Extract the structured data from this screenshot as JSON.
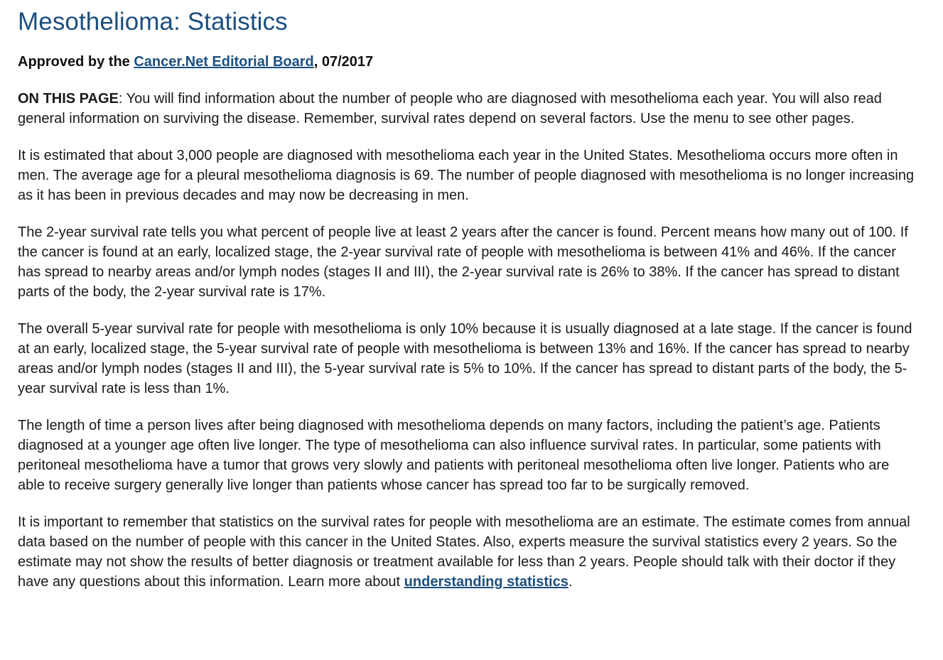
{
  "title": "Mesothelioma: Statistics",
  "approval": {
    "prefix": "Approved by the ",
    "board_link": "Cancer.Net Editorial Board",
    "suffix": ", 07/2017"
  },
  "on_this_page": {
    "label": "ON THIS PAGE",
    "text": ": You will find information about the number of people who are diagnosed with mesothelioma each year. You will also read general information on surviving the disease. Remember, survival rates depend on several factors. Use the menu to see other pages."
  },
  "paragraphs": [
    "It is estimated that about 3,000 people are diagnosed with mesothelioma each year in the United States. Mesothelioma occurs more often in men. The average age for a pleural mesothelioma diagnosis is 69. The number of people diagnosed with mesothelioma is no longer increasing as it has been in previous decades and may now be decreasing in men.",
    "The 2-year survival rate tells you what percent of people live at least 2 years after the cancer is found. Percent means how many out of 100. If the cancer is found at an early, localized stage, the 2-year survival rate of people with mesothelioma is between 41% and 46%. If the cancer has spread to nearby areas and/or lymph nodes (stages II and III), the 2-year survival rate is 26% to 38%. If the cancer has spread to distant parts of the body, the 2-year survival rate is 17%.",
    "The overall 5-year survival rate for people with mesothelioma is only 10% because it is usually diagnosed at a late stage. If the cancer is found at an early, localized stage, the 5-year survival rate of people with mesothelioma is between 13% and 16%. If the cancer has spread to nearby areas and/or lymph nodes (stages II and III), the 5-year survival rate is 5% to 10%. If the cancer has spread to distant parts of the body, the 5-year survival rate is less than 1%.",
    "The length of time a person lives after being diagnosed with mesothelioma depends on many factors, including the patient’s age. Patients diagnosed at a younger age often live longer. The type of mesothelioma can also influence survival rates. In particular, some patients with peritoneal mesothelioma have a tumor that grows very slowly and patients with peritoneal mesothelioma often live longer. Patients who are able to receive surgery generally live longer than patients whose cancer has spread too far to be surgically removed."
  ],
  "final_paragraph": {
    "text": "It is important to remember that statistics on the survival rates for people with mesothelioma are an estimate. The estimate comes from annual data based on the number of people with this cancer in the United States. Also, experts measure the survival statistics every 2 years. So the estimate may not show the results of better diagnosis or treatment available for less than 2 years. People should talk with their doctor if they have any questions about this information. Learn more about ",
    "link": "understanding statistics",
    "end": "."
  },
  "colors": {
    "heading": "#1b4f7f",
    "link": "#1b4f7f",
    "text": "#1a1a1a"
  }
}
